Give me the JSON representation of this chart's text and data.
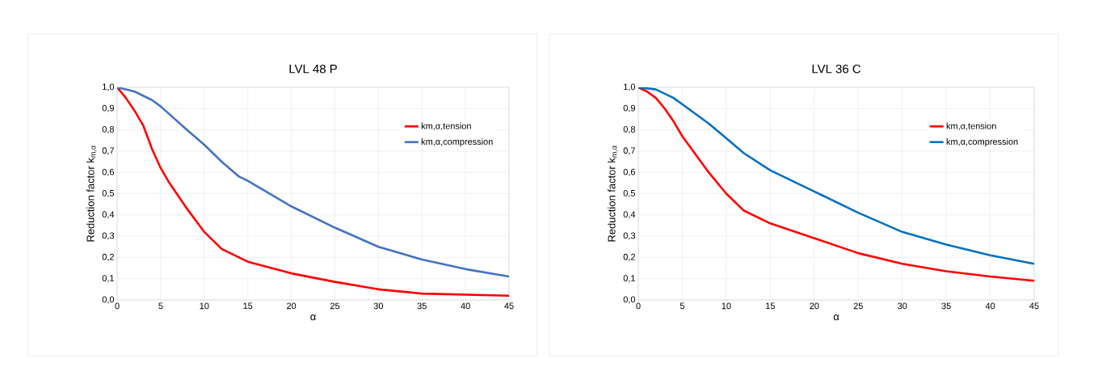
{
  "chart_data": [
    {
      "type": "line",
      "title": "LVL 48 P",
      "xlabel": "α",
      "ylabel": "Reduction factor k$_{m,α}$",
      "xlim": [
        0,
        45
      ],
      "ylim": [
        0,
        1
      ],
      "xticks": [
        0,
        5,
        10,
        15,
        20,
        25,
        30,
        35,
        40,
        45
      ],
      "yticks": [
        {
          "value": 0,
          "label": "0,0"
        },
        {
          "value": 0.1,
          "label": "0,1"
        },
        {
          "value": 0.2,
          "label": "0,2"
        },
        {
          "value": 0.3,
          "label": "0,3"
        },
        {
          "value": 0.4,
          "label": "0,4"
        },
        {
          "value": 0.5,
          "label": "0,5"
        },
        {
          "value": 0.6,
          "label": "0,6"
        },
        {
          "value": 0.7,
          "label": "0,7"
        },
        {
          "value": 0.8,
          "label": "0,8"
        },
        {
          "value": 0.9,
          "label": "0,9"
        },
        {
          "value": 1,
          "label": "1,0"
        }
      ],
      "grid": true,
      "legend": "top right",
      "marker": "none",
      "line_style": "solid",
      "series": [
        {
          "name": "km,α,tension",
          "color": "#ff0000",
          "x": [
            0,
            1,
            2,
            3,
            4,
            5,
            6,
            8,
            10,
            12,
            14,
            15,
            20,
            25,
            30,
            35,
            40,
            45
          ],
          "values": [
            1.0,
            0.95,
            0.89,
            0.82,
            0.71,
            0.62,
            0.55,
            0.43,
            0.32,
            0.24,
            0.2,
            0.18,
            0.125,
            0.085,
            0.05,
            0.03,
            0.025,
            0.02
          ]
        },
        {
          "name": "km,α,compression",
          "color": "#4472c4",
          "x": [
            0,
            2,
            4,
            5,
            8,
            10,
            12,
            14,
            15,
            20,
            25,
            30,
            35,
            40,
            45
          ],
          "values": [
            1.0,
            0.98,
            0.94,
            0.91,
            0.8,
            0.73,
            0.65,
            0.58,
            0.56,
            0.44,
            0.34,
            0.25,
            0.19,
            0.145,
            0.11
          ]
        }
      ]
    },
    {
      "type": "line",
      "title": "LVL 36 C",
      "xlabel": "α",
      "ylabel": "Reduction factor k$_{m,α}$",
      "xlim": [
        0,
        45
      ],
      "ylim": [
        0,
        1
      ],
      "xticks": [
        0,
        5,
        10,
        15,
        20,
        25,
        30,
        35,
        40,
        45
      ],
      "yticks": [
        {
          "value": 0,
          "label": "0,0"
        },
        {
          "value": 0.1,
          "label": "0,1"
        },
        {
          "value": 0.2,
          "label": "0,2"
        },
        {
          "value": 0.3,
          "label": "0,3"
        },
        {
          "value": 0.4,
          "label": "0,4"
        },
        {
          "value": 0.5,
          "label": "0,5"
        },
        {
          "value": 0.6,
          "label": "0,6"
        },
        {
          "value": 0.7,
          "label": "0,7"
        },
        {
          "value": 0.8,
          "label": "0,8"
        },
        {
          "value": 0.9,
          "label": "0,9"
        },
        {
          "value": 1,
          "label": "1,0"
        }
      ],
      "grid": true,
      "legend": "top right",
      "marker": "none",
      "line_style": "solid",
      "series": [
        {
          "name": "km,α,tension",
          "color": "#ff0000",
          "x": [
            0,
            1,
            2,
            3,
            4,
            5,
            8,
            10,
            12,
            15,
            20,
            25,
            30,
            35,
            40,
            45
          ],
          "values": [
            1.0,
            0.98,
            0.95,
            0.9,
            0.84,
            0.77,
            0.6,
            0.5,
            0.42,
            0.36,
            0.29,
            0.22,
            0.17,
            0.135,
            0.11,
            0.09
          ]
        },
        {
          "name": "km,α,compression",
          "color": "#0070c0",
          "x": [
            0,
            2,
            4,
            5,
            8,
            10,
            12,
            15,
            20,
            25,
            30,
            35,
            40,
            45
          ],
          "values": [
            1.0,
            0.99,
            0.95,
            0.92,
            0.83,
            0.76,
            0.69,
            0.61,
            0.51,
            0.41,
            0.32,
            0.26,
            0.21,
            0.17
          ]
        }
      ]
    }
  ]
}
